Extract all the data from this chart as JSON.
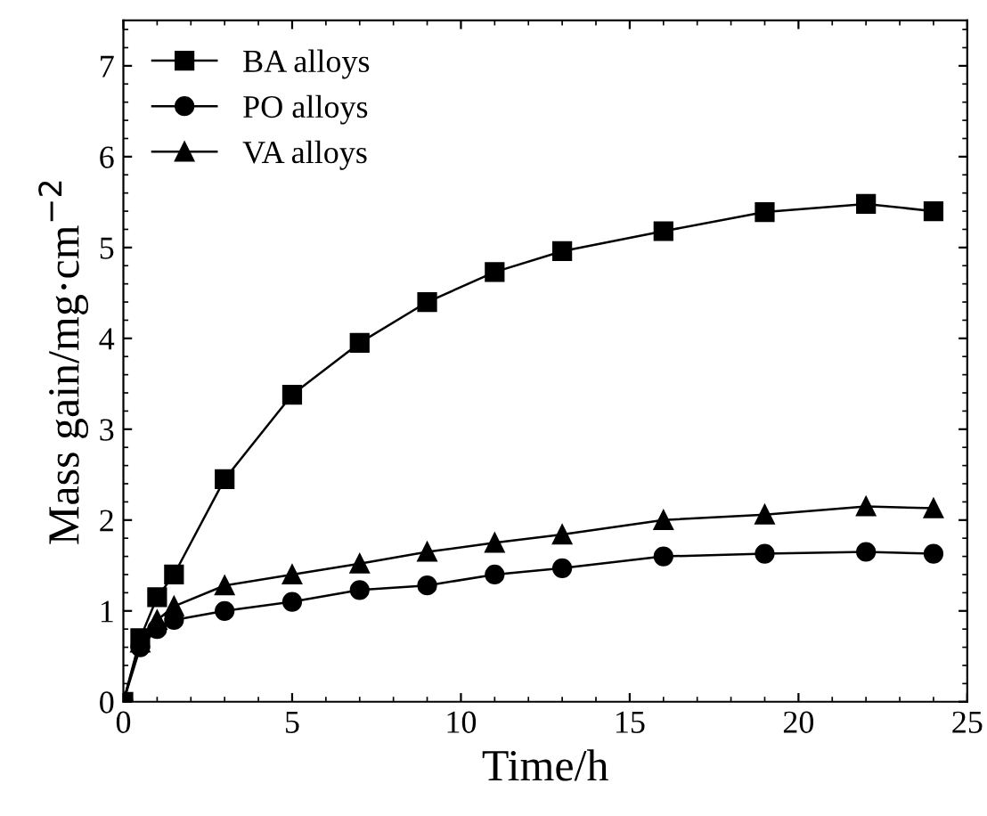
{
  "chart_data": {
    "type": "line",
    "xlabel": "Time/h",
    "ylabel": "Mass gain/mg·cm$^{−2}$",
    "x": [
      0,
      0.5,
      1,
      1.5,
      3,
      5,
      7,
      9,
      11,
      13,
      16,
      19,
      22,
      24
    ],
    "series": [
      {
        "name": "BA alloys",
        "color": "#000000",
        "marker": "square",
        "values": [
          0,
          0.7,
          1.15,
          1.4,
          2.45,
          3.38,
          3.95,
          4.4,
          4.73,
          4.96,
          5.18,
          5.39,
          5.48,
          5.4
        ]
      },
      {
        "name": "PO alloys",
        "color": "#000000",
        "marker": "circle",
        "values": [
          0,
          0.6,
          0.8,
          0.9,
          1.0,
          1.1,
          1.23,
          1.28,
          1.4,
          1.47,
          1.6,
          1.63,
          1.65,
          1.63
        ]
      },
      {
        "name": "VA alloys",
        "color": "#000000",
        "marker": "triangle",
        "values": [
          0,
          0.65,
          0.9,
          1.05,
          1.28,
          1.4,
          1.52,
          1.65,
          1.75,
          1.84,
          2.0,
          2.06,
          2.15,
          2.13
        ]
      }
    ],
    "xlim": [
      0,
      25
    ],
    "xticks": [
      0,
      5,
      10,
      15,
      20,
      25
    ],
    "ylim": [
      0,
      7.5
    ],
    "yticks": [
      0,
      1,
      2,
      3,
      4,
      5,
      6,
      7
    ],
    "grid": false,
    "legend": "top left",
    "line_style": "solid"
  }
}
